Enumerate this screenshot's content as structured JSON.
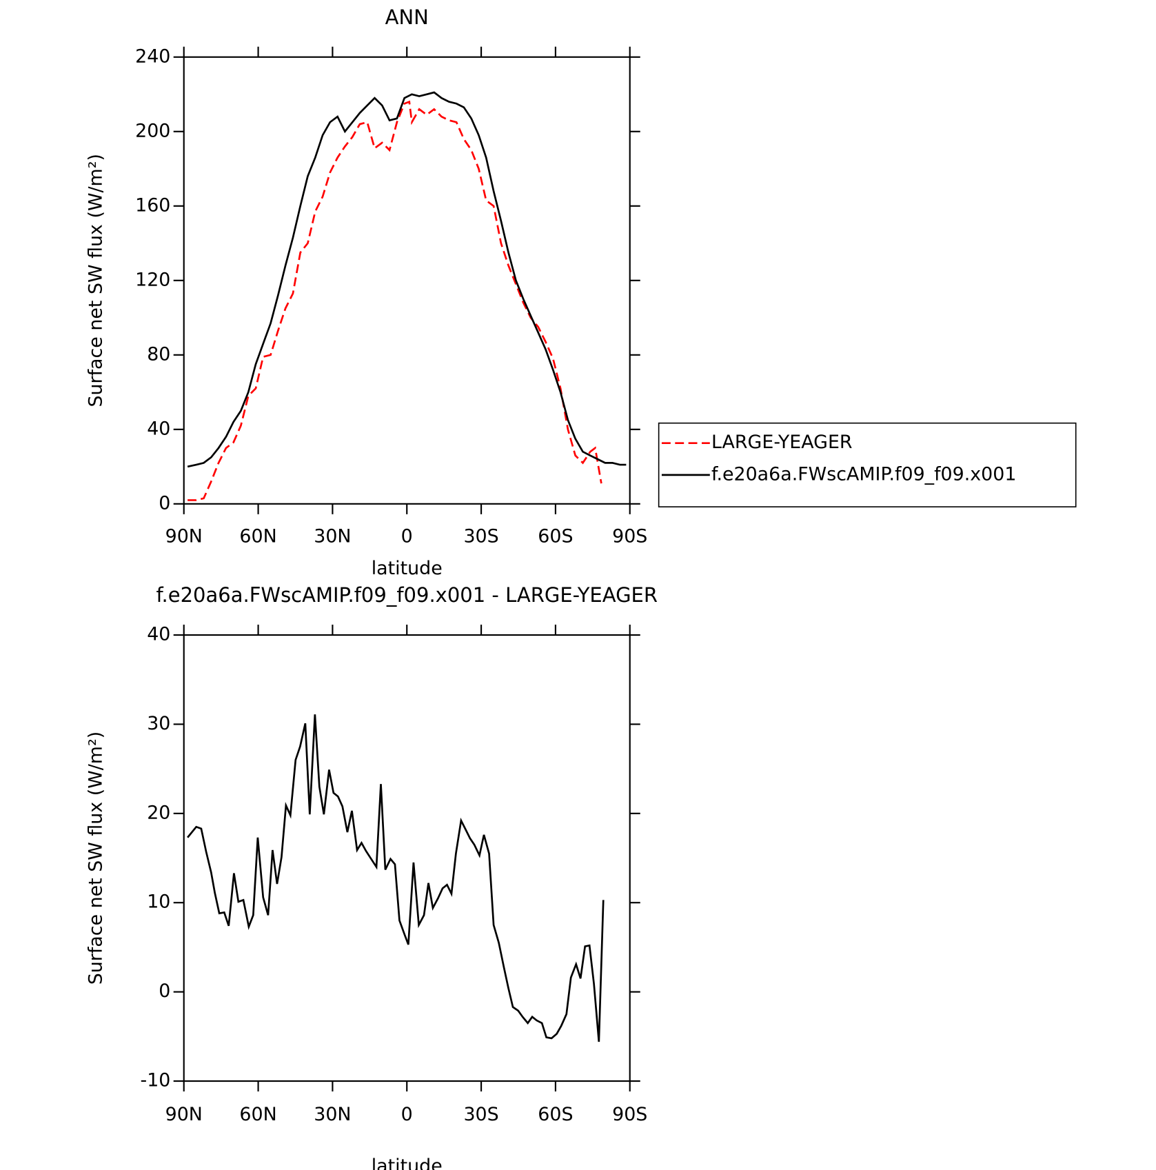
{
  "chart_data": [
    {
      "type": "line",
      "title": "ANN",
      "xlabel": "latitude",
      "ylabel": "Surface net SW flux (W/m²)",
      "xlim": [
        90,
        -90
      ],
      "ylim": [
        0,
        240
      ],
      "xticks": [
        {
          "value": 90,
          "label": "90N"
        },
        {
          "value": 60,
          "label": "60N"
        },
        {
          "value": 30,
          "label": "30N"
        },
        0,
        {
          "value": -30,
          "label": "30S"
        },
        {
          "value": -60,
          "label": "60S"
        },
        {
          "value": -90,
          "label": "90S"
        }
      ],
      "yticks": [
        0,
        40,
        80,
        120,
        160,
        200,
        240
      ],
      "legend": "right",
      "series": [
        {
          "name": "LARGE-YEAGER",
          "color": "#ff0000",
          "line_style": "dashed",
          "x": [
            88.5,
            85,
            82,
            79,
            76,
            73,
            70,
            67,
            64,
            61,
            58,
            55,
            52,
            49,
            46,
            43,
            40,
            37,
            34,
            31,
            28,
            25,
            22,
            19,
            16,
            13,
            10,
            7,
            4,
            1,
            -1,
            -2,
            -5,
            -8,
            -11,
            -14,
            -17,
            -20,
            -23,
            -26,
            -29,
            -32,
            -35,
            -38,
            -41,
            -44,
            -47,
            -50,
            -53,
            -56,
            -59,
            -62,
            -65,
            -68,
            -71,
            -74,
            -76,
            -78.5
          ],
          "values": [
            2,
            2,
            3,
            12,
            22,
            30,
            33,
            42,
            58,
            62,
            79,
            80,
            93,
            105,
            113,
            135,
            140,
            157,
            165,
            178,
            186,
            192,
            197,
            204,
            205,
            191,
            194,
            190,
            205,
            215,
            216,
            205,
            212,
            209,
            212,
            208,
            206,
            205,
            196,
            190,
            180,
            163,
            160,
            140,
            128,
            118,
            108,
            100,
            95,
            87,
            78,
            62,
            40,
            26,
            22,
            28,
            30,
            11
          ]
        },
        {
          "name": "f.e20a6a.FWscAMIP.f09_f09.x001",
          "color": "#000000",
          "line_style": "solid",
          "x": [
            88.5,
            85,
            82,
            79,
            76,
            73,
            70,
            67,
            64,
            61,
            58,
            55,
            52,
            49,
            46,
            43,
            40,
            37,
            34,
            31,
            28,
            25,
            19,
            16,
            13,
            10,
            7,
            4,
            1,
            -2,
            -5,
            -8,
            -11,
            -14,
            -17,
            -20,
            -23,
            -26,
            -29,
            -32,
            -35,
            -38,
            -41,
            -44,
            -47,
            -50,
            -53,
            -56,
            -59,
            -62,
            -65,
            -68,
            -71,
            -74,
            -77,
            -80,
            -83,
            -86,
            -88.5
          ],
          "values": [
            20,
            21,
            22,
            25,
            30,
            36,
            44,
            50,
            60,
            75,
            86,
            97,
            112,
            128,
            143,
            160,
            176,
            186,
            198,
            205,
            208,
            200,
            210,
            214,
            218,
            214,
            206,
            207,
            218,
            220,
            219,
            220,
            221,
            218,
            216,
            215,
            213,
            207,
            198,
            186,
            168,
            152,
            135,
            120,
            110,
            101,
            92,
            83,
            72,
            60,
            45,
            35,
            28,
            26,
            24,
            22,
            22,
            21,
            21
          ]
        }
      ]
    },
    {
      "type": "line",
      "title": "f.e20a6a.FWscAMIP.f09_f09.x001 - LARGE-YEAGER",
      "xlabel": "latitude",
      "ylabel": "Surface net SW flux (W/m²)",
      "xlim": [
        90,
        -90
      ],
      "ylim": [
        -10,
        40
      ],
      "xticks": [
        {
          "value": 90,
          "label": "90N"
        },
        {
          "value": 60,
          "label": "60N"
        },
        {
          "value": 30,
          "label": "30N"
        },
        0,
        {
          "value": -30,
          "label": "30S"
        },
        {
          "value": -60,
          "label": "60S"
        },
        {
          "value": -90,
          "label": "90S"
        }
      ],
      "yticks": [
        -10,
        0,
        10,
        20,
        30,
        40
      ],
      "series": [
        {
          "color": "#000000",
          "line_style": "solid",
          "x": [
            88.5,
            85,
            83,
            81,
            79,
            77.5,
            75.7,
            73.7,
            71.9,
            69.8,
            68,
            66,
            63.8,
            62,
            60.2,
            58,
            56,
            54.2,
            52.4,
            50.6,
            48.8,
            47,
            44.9,
            43.1,
            41,
            39.2,
            37.1,
            35.3,
            33.5,
            31.4,
            29.6,
            27.8,
            26,
            24,
            22.2,
            20.1,
            18.3,
            16.5,
            14.4,
            12.3,
            10.5,
            8.7,
            6.6,
            4.8,
            3,
            0.9,
            -0.6,
            -2.7,
            -4.8,
            -6.9,
            -8.7,
            -10.5,
            -12.6,
            -14.4,
            -16.2,
            -18,
            -19.8,
            -21.9,
            -23.7,
            -25.5,
            -27.2,
            -29.3,
            -31.1,
            -33.2,
            -35,
            -37.1,
            -39.2,
            -41,
            -42.8,
            -44.9,
            -46.7,
            -48.8,
            -50.6,
            -52.4,
            -54.5,
            -56.3,
            -58.4,
            -60.5,
            -62.3,
            -64.4,
            -66.2,
            -68.3,
            -70.1,
            -71.9,
            -73.7,
            -75.5,
            -77.5,
            -79.3
          ],
          "values": [
            17.3,
            18.5,
            18.3,
            15.7,
            13.4,
            11.1,
            8.8,
            8.9,
            7.4,
            13.3,
            10.1,
            10.3,
            7.3,
            8.6,
            17.3,
            10.6,
            8.6,
            15.9,
            12.1,
            15.1,
            20.9,
            19.8,
            26,
            27.5,
            30.1,
            19.9,
            31.1,
            23,
            19.9,
            24.9,
            22.3,
            21.9,
            20.8,
            17.9,
            20.3,
            15.9,
            16.7,
            15.8,
            14.9,
            14,
            23.3,
            13.7,
            14.9,
            14.3,
            8,
            6.4,
            5.3,
            14.5,
            7.5,
            8.6,
            12.2,
            9.4,
            10.5,
            11.6,
            12,
            11,
            15.5,
            19.2,
            18.2,
            17.2,
            16.5,
            15.3,
            17.6,
            15.5,
            7.5,
            5.5,
            2.7,
            0.4,
            -1.7,
            -2.1,
            -2.8,
            -3.5,
            -2.8,
            -3.2,
            -3.5,
            -5.1,
            -5.2,
            -4.7,
            -3.8,
            -2.5,
            1.6,
            3.1,
            1.5,
            5.1,
            5.2,
            0.9,
            -5.6,
            10.3
          ]
        }
      ]
    }
  ]
}
